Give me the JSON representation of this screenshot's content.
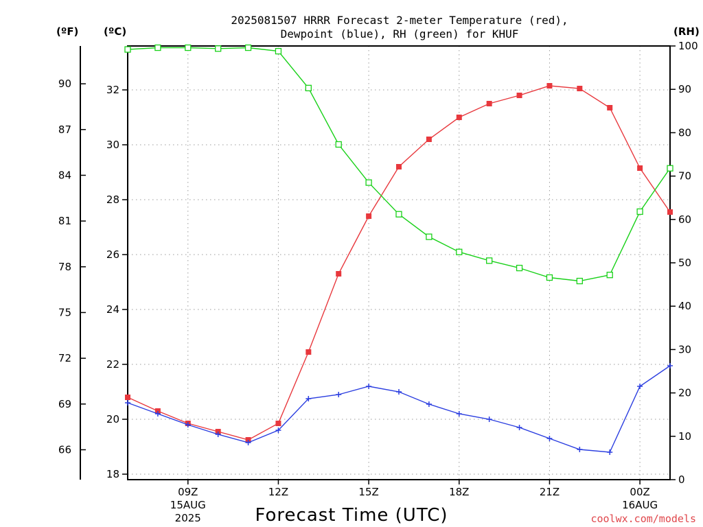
{
  "chart_data": {
    "type": "line",
    "title_line1": "2025081507 HRRR Forecast 2-meter Temperature (red),",
    "title_line2": "Dewpoint (blue), RH (green) for KHUF",
    "xlabel": "Forecast Time (UTC)",
    "credit": "coolwx.com/models",
    "units": {
      "fahrenheit": "(ºF)",
      "celsius": "(ºC)",
      "rh": "(RH)"
    },
    "x_hours_utc": [
      7,
      8,
      9,
      10,
      11,
      12,
      13,
      14,
      15,
      16,
      17,
      18,
      19,
      20,
      21,
      22,
      23,
      24,
      25
    ],
    "x_ticks": [
      {
        "hour": 9,
        "lines": [
          "09Z",
          "15AUG",
          "2025"
        ]
      },
      {
        "hour": 12,
        "lines": [
          "12Z"
        ]
      },
      {
        "hour": 15,
        "lines": [
          "15Z"
        ]
      },
      {
        "hour": 18,
        "lines": [
          "18Z"
        ]
      },
      {
        "hour": 21,
        "lines": [
          "21Z"
        ]
      },
      {
        "hour": 24,
        "lines": [
          "00Z",
          "16AUG"
        ]
      }
    ],
    "xlim": [
      7,
      25
    ],
    "left_axis_celsius": {
      "ylim": [
        17.8,
        33.6
      ],
      "ticks": [
        18,
        20,
        22,
        24,
        26,
        28,
        30,
        32
      ]
    },
    "left_axis_fahrenheit": {
      "ticks": [
        66,
        69,
        72,
        75,
        78,
        81,
        84,
        87,
        90
      ]
    },
    "right_axis_rh": {
      "ylim": [
        0,
        100
      ],
      "ticks": [
        0,
        10,
        20,
        30,
        40,
        50,
        60,
        70,
        80,
        90,
        100
      ]
    },
    "series": [
      {
        "name": "Temperature",
        "axis": "celsius",
        "color": "#e8383d",
        "marker": "filled-square",
        "values": [
          20.8,
          20.3,
          19.85,
          19.55,
          19.25,
          19.85,
          22.45,
          25.3,
          27.4,
          29.2,
          30.2,
          31.0,
          31.5,
          31.8,
          32.15,
          32.05,
          31.35,
          29.15,
          27.55
        ]
      },
      {
        "name": "Dewpoint",
        "axis": "celsius",
        "color": "#2b3ee0",
        "marker": "plus",
        "values": [
          20.6,
          20.2,
          19.8,
          19.45,
          19.15,
          19.6,
          20.75,
          20.9,
          21.2,
          21.0,
          20.55,
          20.2,
          20.0,
          19.7,
          19.3,
          18.9,
          18.8,
          21.2,
          21.95
        ]
      },
      {
        "name": "RH",
        "axis": "rh",
        "color": "#19d119",
        "marker": "open-square",
        "values": [
          99.2,
          99.6,
          99.6,
          99.4,
          99.6,
          98.8,
          90.3,
          77.3,
          68.5,
          61.2,
          56.0,
          52.5,
          50.5,
          48.8,
          46.6,
          45.8,
          47.2,
          61.8,
          71.8
        ]
      }
    ]
  }
}
